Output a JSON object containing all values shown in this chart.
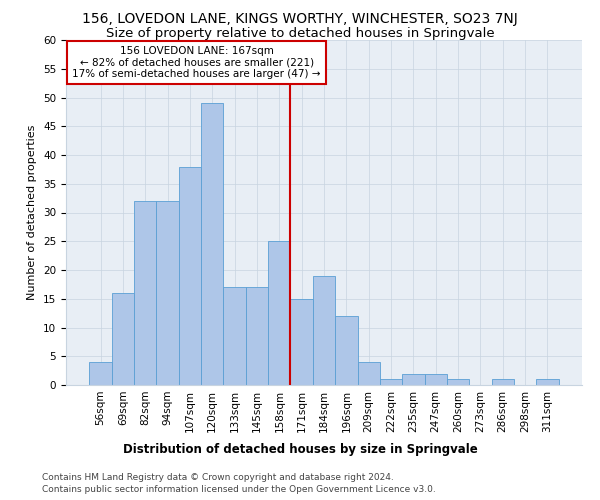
{
  "title": "156, LOVEDON LANE, KINGS WORTHY, WINCHESTER, SO23 7NJ",
  "subtitle": "Size of property relative to detached houses in Springvale",
  "xlabel": "Distribution of detached houses by size in Springvale",
  "ylabel": "Number of detached properties",
  "categories": [
    "56sqm",
    "69sqm",
    "82sqm",
    "94sqm",
    "107sqm",
    "120sqm",
    "133sqm",
    "145sqm",
    "158sqm",
    "171sqm",
    "184sqm",
    "196sqm",
    "209sqm",
    "222sqm",
    "235sqm",
    "247sqm",
    "260sqm",
    "273sqm",
    "286sqm",
    "298sqm",
    "311sqm"
  ],
  "values": [
    4,
    16,
    32,
    32,
    38,
    49,
    17,
    17,
    25,
    15,
    19,
    12,
    4,
    1,
    2,
    2,
    1,
    0,
    1,
    0,
    1
  ],
  "bar_color": "#aec6e8",
  "bar_edge_color": "#5a9fd4",
  "annotation_text": "156 LOVEDON LANE: 167sqm\n← 82% of detached houses are smaller (221)\n17% of semi-detached houses are larger (47) →",
  "annotation_box_color": "#ffffff",
  "annotation_box_edge": "#cc0000",
  "ylim": [
    0,
    60
  ],
  "yticks": [
    0,
    5,
    10,
    15,
    20,
    25,
    30,
    35,
    40,
    45,
    50,
    55,
    60
  ],
  "grid_color": "#c8d4e0",
  "bg_color": "#e8eef5",
  "vline_index": 9.5,
  "footer_line1": "Contains HM Land Registry data © Crown copyright and database right 2024.",
  "footer_line2": "Contains public sector information licensed under the Open Government Licence v3.0.",
  "title_fontsize": 10,
  "subtitle_fontsize": 9.5,
  "xlabel_fontsize": 8.5,
  "ylabel_fontsize": 8,
  "tick_fontsize": 7.5,
  "footer_fontsize": 6.5,
  "annotation_fontsize": 7.5
}
